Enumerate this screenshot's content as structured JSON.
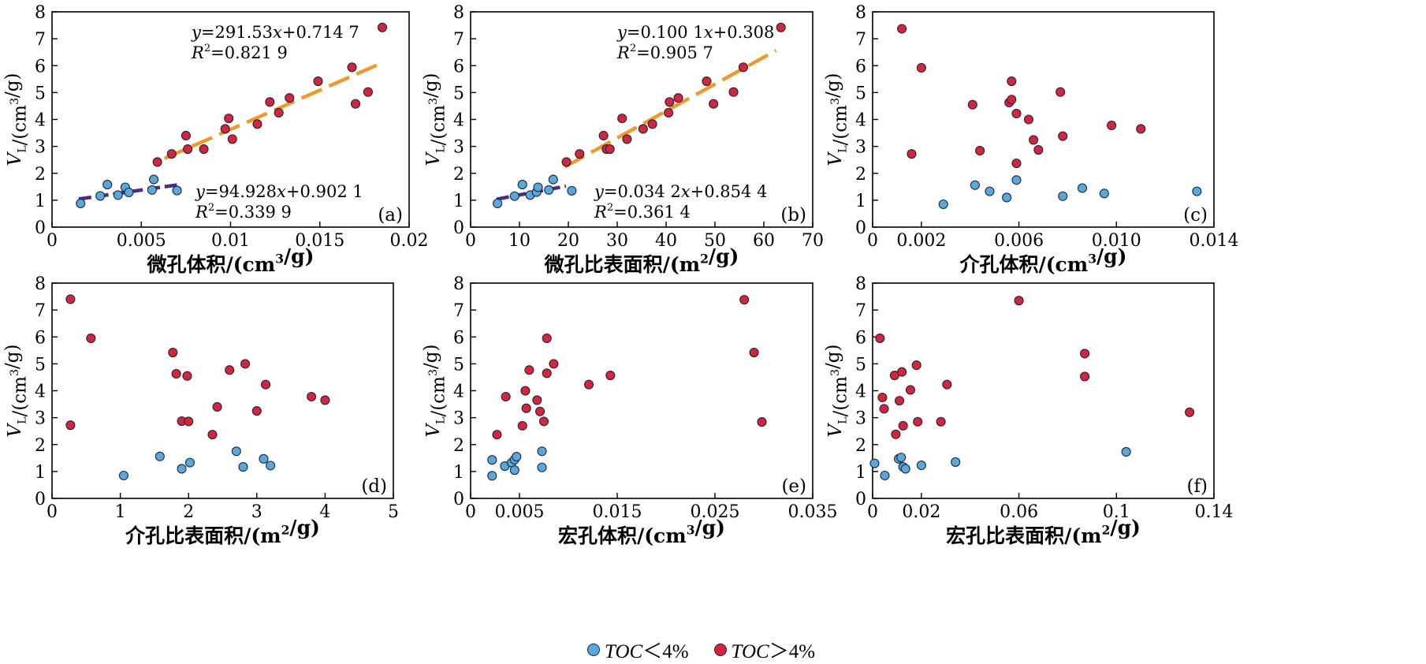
{
  "colors": {
    "low": "#5aa7dc",
    "high": "#d5243c",
    "stroke": "#1b2a3a",
    "fit_high": "#ec9a2c",
    "fit_low": "#4b2b8c"
  },
  "legend": {
    "low_label": "TOC",
    "low_suffix": "＜4%",
    "high_label": "TOC",
    "high_suffix": "＞4%"
  },
  "ylabel": "V_L/(cm³/g)",
  "chart_data": [
    {
      "type": "scatter",
      "panel": "(a)",
      "xlabel": "微孔体积/(cm³/g)",
      "xlim": [
        0,
        0.02
      ],
      "ylim": [
        0,
        8
      ],
      "xticks": [
        0,
        0.005,
        0.01,
        0.015,
        0.02
      ],
      "xtick_labels": [
        "0",
        "0.005",
        "0.01",
        "0.015",
        "0.02"
      ],
      "yticks": [
        0,
        1,
        2,
        3,
        4,
        5,
        6,
        7,
        8
      ],
      "series": [
        {
          "group": "low",
          "points": [
            [
              0.0016,
              0.88
            ],
            [
              0.0027,
              1.16
            ],
            [
              0.0031,
              1.58
            ],
            [
              0.0037,
              1.19
            ],
            [
              0.0041,
              1.48
            ],
            [
              0.0043,
              1.29
            ],
            [
              0.0056,
              1.38
            ],
            [
              0.0057,
              1.77
            ],
            [
              0.007,
              1.36
            ]
          ]
        },
        {
          "group": "high",
          "points": [
            [
              0.0059,
              2.42
            ],
            [
              0.0067,
              2.72
            ],
            [
              0.0075,
              3.4
            ],
            [
              0.0076,
              2.9
            ],
            [
              0.0085,
              2.9
            ],
            [
              0.0097,
              3.65
            ],
            [
              0.0099,
              4.04
            ],
            [
              0.0101,
              3.27
            ],
            [
              0.0115,
              3.83
            ],
            [
              0.0122,
              4.65
            ],
            [
              0.0127,
              4.25
            ],
            [
              0.0133,
              4.8
            ],
            [
              0.0149,
              5.42
            ],
            [
              0.0168,
              5.94
            ],
            [
              0.017,
              4.58
            ],
            [
              0.0177,
              5.02
            ],
            [
              0.0185,
              7.42
            ]
          ]
        }
      ],
      "fits": [
        {
          "group": "high",
          "slope": 291.53,
          "intercept": 0.7147,
          "x_range": [
            0.0063,
            0.0185
          ],
          "eq": "y=291.53x+0.714 7",
          "r2": "0.821 9"
        },
        {
          "group": "low",
          "slope": 94.928,
          "intercept": 0.9021,
          "x_range": [
            0.0015,
            0.007
          ],
          "eq": "y=94.928x+0.902 1",
          "r2": "0.339 9"
        }
      ]
    },
    {
      "type": "scatter",
      "panel": "(b)",
      "xlabel": "微孔比表面积/(m²/g)",
      "xlim": [
        0,
        70
      ],
      "ylim": [
        0,
        8
      ],
      "xticks": [
        0,
        10,
        20,
        30,
        40,
        50,
        60,
        70
      ],
      "xtick_labels": [
        "0",
        "10",
        "20",
        "30",
        "40",
        "50",
        "60",
        "70"
      ],
      "yticks": [
        0,
        1,
        2,
        3,
        4,
        5,
        6,
        7,
        8
      ],
      "series": [
        {
          "group": "low",
          "points": [
            [
              5.5,
              0.88
            ],
            [
              9.0,
              1.15
            ],
            [
              10.6,
              1.58
            ],
            [
              12.2,
              1.19
            ],
            [
              13.5,
              1.3
            ],
            [
              13.8,
              1.48
            ],
            [
              16.0,
              1.38
            ],
            [
              16.9,
              1.77
            ],
            [
              20.7,
              1.35
            ]
          ]
        },
        {
          "group": "high",
          "points": [
            [
              19.6,
              2.42
            ],
            [
              22.3,
              2.72
            ],
            [
              27.2,
              3.4
            ],
            [
              27.8,
              2.9
            ],
            [
              28.5,
              2.9
            ],
            [
              31.0,
              4.04
            ],
            [
              32.0,
              3.27
            ],
            [
              35.3,
              3.65
            ],
            [
              37.2,
              3.83
            ],
            [
              40.5,
              4.25
            ],
            [
              40.7,
              4.65
            ],
            [
              42.5,
              4.8
            ],
            [
              48.3,
              5.42
            ],
            [
              49.7,
              4.58
            ],
            [
              53.8,
              5.02
            ],
            [
              55.8,
              5.94
            ],
            [
              63.5,
              7.42
            ]
          ]
        }
      ],
      "fits": [
        {
          "group": "high",
          "slope": 0.1001,
          "intercept": 0.308,
          "x_range": [
            19.3,
            62.5
          ],
          "eq": "y=0.100 1x+0.308",
          "r2": "0.905 7"
        },
        {
          "group": "low",
          "slope": 0.0342,
          "intercept": 0.8544,
          "x_range": [
            5.3,
            19.5
          ],
          "eq": "y=0.034 2x+0.854 4",
          "r2": "0.361 4"
        }
      ]
    },
    {
      "type": "scatter",
      "panel": "(c)",
      "xlabel": "介孔体积/(cm³/g)",
      "xlim": [
        0,
        0.014
      ],
      "ylim": [
        0,
        8
      ],
      "xticks": [
        0,
        0.002,
        0.006,
        0.01,
        0.014
      ],
      "xtick_labels": [
        "0",
        "0.002",
        "0.006",
        "0.010",
        "0.014"
      ],
      "yticks": [
        0,
        1,
        2,
        3,
        4,
        5,
        6,
        7,
        8
      ],
      "series": [
        {
          "group": "low",
          "points": [
            [
              0.0029,
              0.85
            ],
            [
              0.0042,
              1.56
            ],
            [
              0.0048,
              1.33
            ],
            [
              0.0055,
              1.1
            ],
            [
              0.0059,
              1.75
            ],
            [
              0.0078,
              1.15
            ],
            [
              0.0086,
              1.45
            ],
            [
              0.0095,
              1.25
            ],
            [
              0.0133,
              1.33
            ]
          ]
        },
        {
          "group": "high",
          "points": [
            [
              0.0012,
              7.37
            ],
            [
              0.0016,
              2.72
            ],
            [
              0.002,
              5.92
            ],
            [
              0.0041,
              4.55
            ],
            [
              0.0044,
              2.84
            ],
            [
              0.0056,
              4.63
            ],
            [
              0.0057,
              4.74
            ],
            [
              0.0057,
              5.42
            ],
            [
              0.0059,
              4.22
            ],
            [
              0.0059,
              2.37
            ],
            [
              0.0064,
              4.0
            ],
            [
              0.0066,
              3.24
            ],
            [
              0.0068,
              2.87
            ],
            [
              0.0077,
              5.02
            ],
            [
              0.0078,
              3.38
            ],
            [
              0.0098,
              3.78
            ],
            [
              0.011,
              3.65
            ]
          ]
        }
      ]
    },
    {
      "type": "scatter",
      "panel": "(d)",
      "xlabel": "介孔比表面积/(m²/g)",
      "xlim": [
        0,
        5
      ],
      "ylim": [
        0,
        8
      ],
      "xticks": [
        0,
        1,
        2,
        3,
        4,
        5
      ],
      "xtick_labels": [
        "0",
        "1",
        "2",
        "3",
        "4",
        "5"
      ],
      "yticks": [
        0,
        1,
        2,
        3,
        4,
        5,
        6,
        7,
        8
      ],
      "series": [
        {
          "group": "low",
          "points": [
            [
              1.05,
              0.85
            ],
            [
              1.58,
              1.56
            ],
            [
              1.9,
              1.1
            ],
            [
              2.02,
              1.33
            ],
            [
              2.7,
              1.75
            ],
            [
              2.8,
              1.17
            ],
            [
              3.1,
              1.47
            ],
            [
              3.2,
              1.22
            ]
          ]
        },
        {
          "group": "high",
          "points": [
            [
              0.27,
              7.4
            ],
            [
              0.27,
              2.72
            ],
            [
              0.57,
              5.95
            ],
            [
              1.77,
              5.42
            ],
            [
              1.82,
              4.63
            ],
            [
              1.9,
              2.87
            ],
            [
              1.98,
              4.55
            ],
            [
              2.0,
              2.86
            ],
            [
              2.35,
              2.37
            ],
            [
              2.42,
              3.4
            ],
            [
              2.6,
              4.77
            ],
            [
              2.83,
              5.0
            ],
            [
              3.0,
              3.25
            ],
            [
              3.13,
              4.23
            ],
            [
              3.8,
              3.78
            ],
            [
              4.0,
              3.65
            ]
          ]
        }
      ]
    },
    {
      "type": "scatter",
      "panel": "(e)",
      "xlabel": "宏孔体积/(cm³/g)",
      "xlim": [
        0,
        0.035
      ],
      "ylim": [
        0,
        8
      ],
      "xticks": [
        0,
        0.005,
        0.015,
        0.025,
        0.035
      ],
      "xtick_labels": [
        "0",
        "0.005",
        "0.015",
        "0.025",
        "0.035"
      ],
      "yticks": [
        0,
        1,
        2,
        3,
        4,
        5,
        6,
        7,
        8
      ],
      "series": [
        {
          "group": "low",
          "points": [
            [
              0.0022,
              0.84
            ],
            [
              0.0022,
              1.43
            ],
            [
              0.0035,
              1.2
            ],
            [
              0.0042,
              1.33
            ],
            [
              0.0045,
              1.05
            ],
            [
              0.0045,
              1.44
            ],
            [
              0.0047,
              1.55
            ],
            [
              0.0073,
              1.15
            ],
            [
              0.0073,
              1.75
            ]
          ]
        },
        {
          "group": "high",
          "points": [
            [
              0.0027,
              2.37
            ],
            [
              0.0036,
              3.78
            ],
            [
              0.0053,
              2.7
            ],
            [
              0.0056,
              4.0
            ],
            [
              0.0057,
              3.35
            ],
            [
              0.006,
              4.77
            ],
            [
              0.0068,
              3.65
            ],
            [
              0.0071,
              3.23
            ],
            [
              0.0075,
              2.86
            ],
            [
              0.0078,
              4.65
            ],
            [
              0.0078,
              5.95
            ],
            [
              0.0085,
              5.0
            ],
            [
              0.0121,
              4.23
            ],
            [
              0.0143,
              4.57
            ],
            [
              0.028,
              7.38
            ],
            [
              0.029,
              5.42
            ],
            [
              0.0298,
              2.84
            ]
          ]
        }
      ]
    },
    {
      "type": "scatter",
      "panel": "(f)",
      "xlabel": "宏孔比表面积/(m²/g)",
      "xlim": [
        0,
        0.14
      ],
      "ylim": [
        0,
        8
      ],
      "xticks": [
        0,
        0.02,
        0.06,
        0.1,
        0.14
      ],
      "xtick_labels": [
        "0",
        "0.02",
        "0.06",
        "0.1",
        "0.14"
      ],
      "yticks": [
        0,
        1,
        2,
        3,
        4,
        5,
        6,
        7,
        8
      ],
      "series": [
        {
          "group": "low",
          "points": [
            [
              0.0008,
              1.3
            ],
            [
              0.005,
              0.85
            ],
            [
              0.0107,
              1.47
            ],
            [
              0.0117,
              1.52
            ],
            [
              0.0125,
              1.17
            ],
            [
              0.0135,
              1.1
            ],
            [
              0.02,
              1.23
            ],
            [
              0.034,
              1.35
            ],
            [
              0.104,
              1.73
            ]
          ]
        },
        {
          "group": "high",
          "points": [
            [
              0.003,
              5.95
            ],
            [
              0.004,
              3.75
            ],
            [
              0.0047,
              3.33
            ],
            [
              0.009,
              4.57
            ],
            [
              0.0095,
              2.38
            ],
            [
              0.011,
              3.63
            ],
            [
              0.012,
              4.7
            ],
            [
              0.0125,
              2.7
            ],
            [
              0.0155,
              4.03
            ],
            [
              0.018,
              4.95
            ],
            [
              0.0185,
              2.85
            ],
            [
              0.028,
              2.85
            ],
            [
              0.0305,
              4.23
            ],
            [
              0.06,
              7.35
            ],
            [
              0.087,
              4.53
            ],
            [
              0.087,
              5.38
            ],
            [
              0.13,
              3.2
            ]
          ]
        }
      ]
    }
  ]
}
